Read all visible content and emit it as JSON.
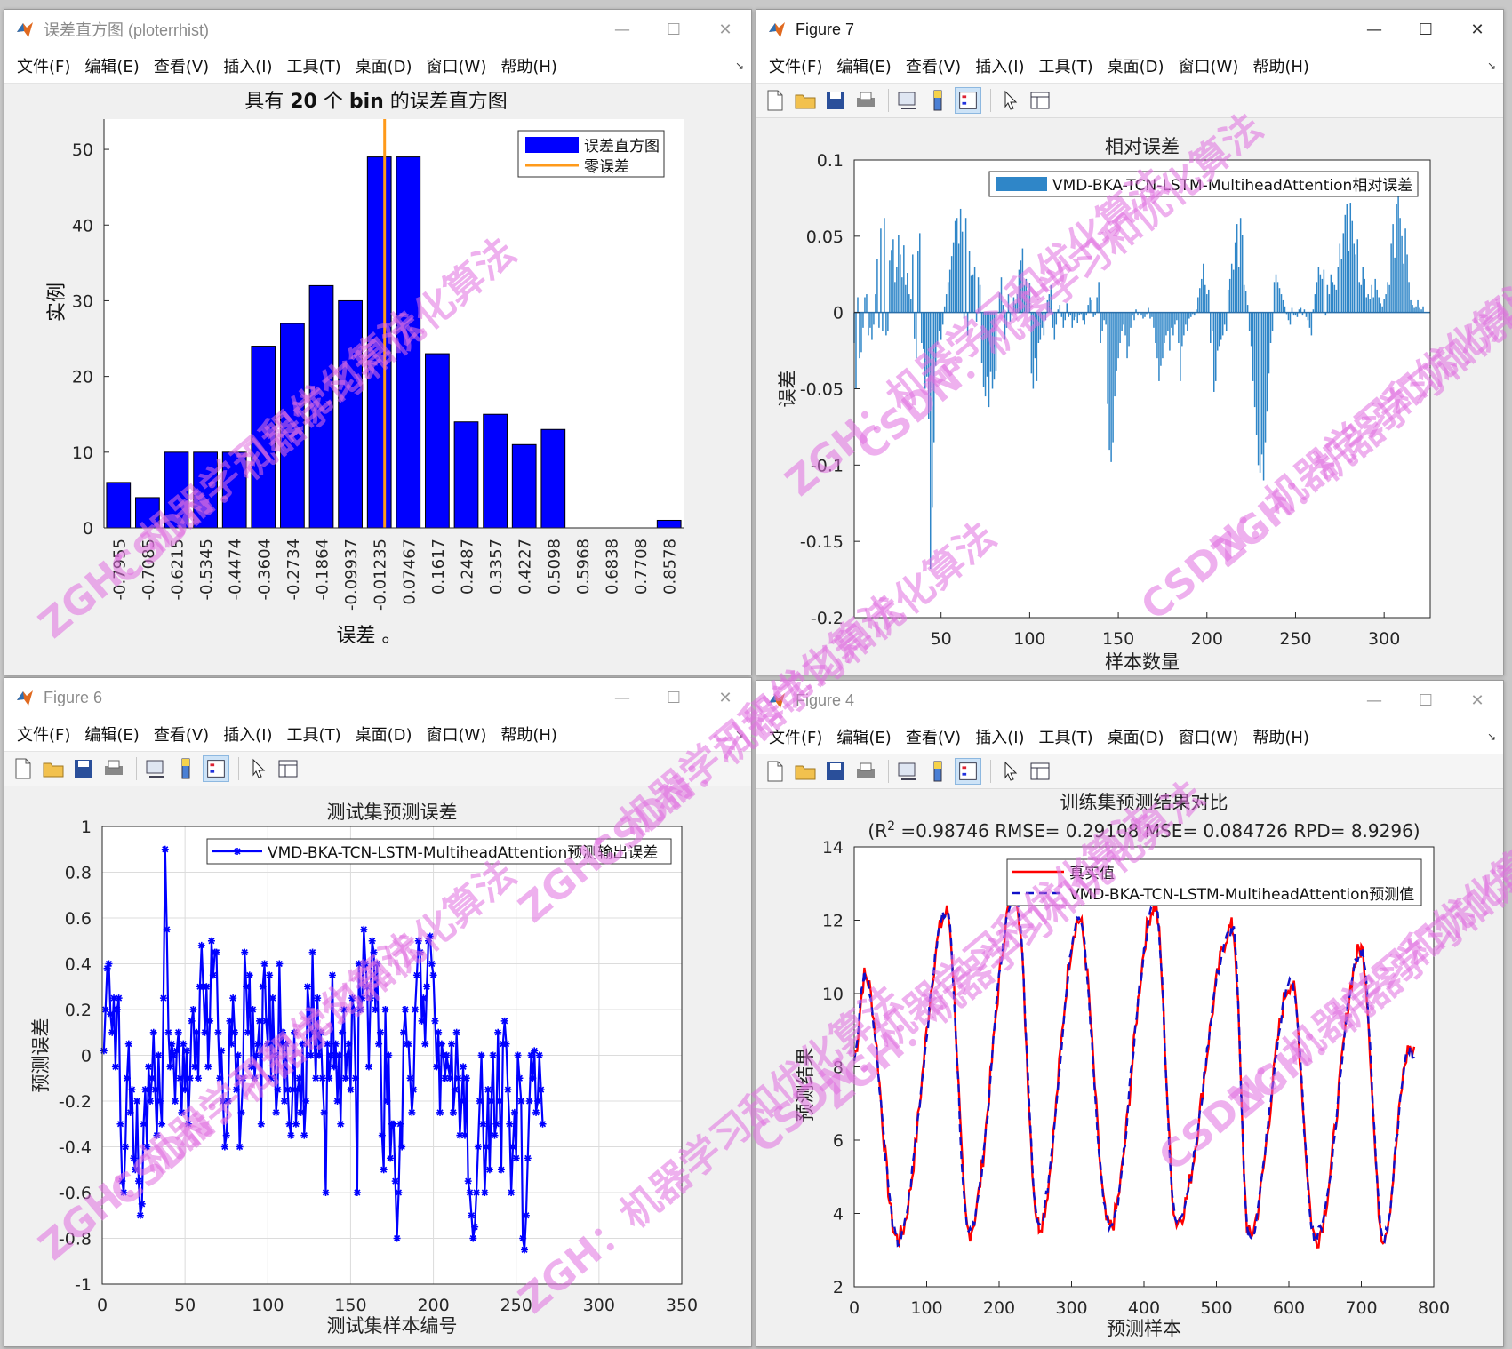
{
  "menu": [
    "文件(F)",
    "编辑(E)",
    "查看(V)",
    "插入(I)",
    "工具(T)",
    "桌面(D)",
    "窗口(W)",
    "帮助(H)"
  ],
  "controls": {
    "minimize": "—",
    "maximize": "☐",
    "close": "✕"
  },
  "toolbar_icons": [
    "new-file-icon",
    "open-folder-icon",
    "save-icon",
    "print-icon",
    "link-plot-icon",
    "colorbar-icon",
    "legend-icon",
    "pointer-icon",
    "property-editor-icon"
  ],
  "windows": {
    "hist": {
      "title": "误差直方图 (ploterrhist)",
      "chart_data": {
        "type": "bar",
        "title_parts": [
          "具有 ",
          "20",
          " 个 ",
          "bin",
          " 的误差直方图"
        ],
        "xlabel": "误差 。",
        "ylabel": "实例",
        "categories": [
          "-0.7955",
          "-0.7085",
          "-0.6215",
          "-0.5345",
          "-0.4474",
          "-0.3604",
          "-0.2734",
          "-0.1864",
          "-0.09937",
          "-0.01235",
          "0.07467",
          "0.1617",
          "0.2487",
          "0.3357",
          "0.4227",
          "0.5098",
          "0.5968",
          "0.6838",
          "0.7708",
          "0.8578"
        ],
        "values": [
          6,
          4,
          10,
          10,
          10,
          24,
          27,
          32,
          30,
          49,
          49,
          23,
          14,
          15,
          11,
          13,
          0,
          0,
          0,
          1
        ],
        "ylim": [
          0,
          54
        ],
        "yticks": [
          0,
          10,
          20,
          30,
          40,
          50
        ],
        "zero_line_at": -0.01235,
        "legend": [
          {
            "name": "误差直方图",
            "color": "#0000ff"
          },
          {
            "name": "零误差",
            "color": "#ff9a1a"
          }
        ],
        "legend_position": "top-right"
      }
    },
    "fig7": {
      "title": "Figure 7",
      "chart_data": {
        "type": "bar",
        "title": "相对误差",
        "xlabel": "样本数量",
        "ylabel": "误差",
        "xlim": [
          1,
          326
        ],
        "ylim": [
          -0.2,
          0.1
        ],
        "xticks": [
          50,
          100,
          150,
          200,
          250,
          300
        ],
        "yticks": [
          0.1,
          0.05,
          0,
          -0.05,
          -0.1,
          -0.15,
          -0.2
        ],
        "ytick_labels": [
          "0.1",
          "0.05",
          "0",
          "-0.05",
          "-0.1",
          "-0.15",
          "-0.2"
        ],
        "legend": [
          {
            "name": "VMD-BKA-TCN-LSTM-MultiheadAttention相对误差",
            "color": "#2f86c8"
          }
        ],
        "legend_position": "top-right",
        "values": [
          -0.02,
          -0.05,
          0.01,
          -0.03,
          -0.026,
          -0.01,
          0.01,
          0.012,
          -0.015,
          -0.01,
          -0.018,
          -0.008,
          0.012,
          0.035,
          -0.01,
          0.055,
          -0.012,
          0.062,
          -0.015,
          -0.012,
          0.034,
          0.041,
          0.048,
          0.02,
          0.03,
          0.051,
          0.038,
          0.023,
          0.044,
          0.018,
          0.026,
          0.012,
          0.009,
          0.038,
          -0.017,
          -0.03,
          0.04,
          0.052,
          -0.02,
          -0.024,
          -0.05,
          -0.042,
          -0.07,
          -0.168,
          -0.128,
          -0.085,
          -0.035,
          -0.021,
          -0.012,
          -0.018,
          -0.008,
          0.004,
          0.012,
          0.02,
          0.028,
          0.037,
          0.046,
          0.06,
          0.062,
          0.045,
          0.068,
          0.053,
          -0.004,
          0.062,
          -0.015,
          0.04,
          0.024,
          0.025,
          0.03,
          -0.006,
          0.023,
          0.018,
          -0.033,
          -0.049,
          -0.055,
          -0.042,
          -0.062,
          -0.039,
          -0.05,
          -0.044,
          -0.038,
          0.0,
          0.013,
          0.023,
          0.005,
          -0.018,
          -0.01,
          0.012,
          -0.006,
          -0.002,
          0.01,
          0.006,
          0.012,
          0.028,
          0.034,
          0.042,
          0.018,
          0.022,
          0.012,
          0.019,
          -0.04,
          -0.05,
          -0.03,
          -0.045,
          -0.02,
          -0.018,
          -0.01,
          -0.015,
          -0.005,
          0.008,
          0.012,
          0.018,
          -0.01,
          -0.018,
          -0.008,
          0.002,
          0.005,
          -0.003,
          -0.01,
          -0.005,
          0.006,
          -0.003,
          -0.002,
          -0.01,
          -0.005,
          -0.003,
          -0.007,
          -0.002,
          -0.001,
          -0.005,
          -0.008,
          -0.002,
          0.005,
          0.01,
          0.008,
          -0.003,
          -0.002,
          0.01,
          0.02,
          -0.02,
          -0.012,
          -0.005,
          -0.008,
          -0.06,
          -0.09,
          -0.098,
          -0.085,
          -0.055,
          -0.038,
          -0.03,
          -0.02,
          -0.012,
          -0.008,
          -0.015,
          -0.03,
          -0.022,
          -0.01,
          -0.002,
          -0.005,
          0.002,
          -0.002,
          0.0,
          -0.002,
          -0.004,
          -0.003,
          -0.001,
          0.003,
          -0.004,
          -0.003,
          -0.01,
          -0.02,
          -0.03,
          -0.045,
          -0.035,
          -0.03,
          -0.02,
          -0.015,
          -0.012,
          -0.025,
          -0.01,
          -0.015,
          -0.008,
          -0.005,
          -0.02,
          -0.045,
          -0.022,
          -0.015,
          -0.008,
          -0.012,
          -0.004,
          -0.003,
          -0.001,
          -0.002,
          0.002,
          0.01,
          0.016,
          0.022,
          0.032,
          0.018,
          0.012,
          0.015,
          -0.02,
          -0.012,
          -0.052,
          -0.045,
          -0.025,
          -0.022,
          -0.018,
          -0.015,
          -0.008,
          -0.012,
          0.015,
          0.022,
          0.032,
          0.028,
          0.046,
          0.058,
          0.03,
          0.062,
          0.051,
          0.018,
          0.014,
          0.005,
          -0.012,
          -0.022,
          -0.045,
          -0.062,
          -0.08,
          -0.1,
          -0.105,
          -0.093,
          -0.11,
          -0.085,
          -0.065,
          -0.04,
          -0.02,
          -0.012,
          0.02,
          0.025,
          0.02,
          0.016,
          0.012,
          0.008,
          0.004,
          -0.001,
          -0.005,
          -0.008,
          0.003,
          -0.002,
          -0.002,
          -0.003,
          0.002,
          0.003,
          -0.002,
          0.002,
          -0.003,
          -0.005,
          -0.01,
          -0.015,
          0.002,
          0.012,
          0.02,
          0.03,
          0.025,
          0.022,
          0.028,
          -0.002,
          0.018,
          0.012,
          0.025,
          0.02,
          0.018,
          0.015,
          0.03,
          0.045,
          0.035,
          0.052,
          0.064,
          0.071,
          0.04,
          0.072,
          0.06,
          0.045,
          0.038,
          0.048,
          0.02,
          0.018,
          0.03,
          0.022,
          0.01,
          0.012,
          0.009,
          0.018,
          0.01,
          0.022,
          0.015,
          0.01,
          0.006,
          0.004,
          0.009,
          0.012,
          0.02,
          0.018,
          0.045,
          0.058,
          0.036,
          0.071,
          0.084,
          0.062,
          0.05,
          0.032,
          0.055,
          0.038,
          0.02,
          0.008,
          0.005,
          0.003,
          0.004,
          0.008,
          0.003,
          0.002,
          0.004
        ]
      }
    },
    "fig6": {
      "title": "Figure 6",
      "chart_data": {
        "type": "line",
        "title": "测试集预测误差",
        "xlabel": "测试集样本编号",
        "ylabel": "预测误差",
        "xlim": [
          0,
          350
        ],
        "ylim": [
          -1,
          1
        ],
        "xticks": [
          0,
          50,
          100,
          150,
          200,
          250,
          300,
          350
        ],
        "yticks": [
          1,
          0.8,
          0.6,
          0.4,
          0.2,
          0,
          -0.2,
          -0.4,
          -0.6,
          -0.8,
          -1
        ],
        "ytick_labels": [
          "1",
          "0.8",
          "0.6",
          "0.4",
          "0.2",
          "0",
          "-0.2",
          "-0.4",
          "-0.6",
          "-0.8",
          "-1"
        ],
        "legend": [
          {
            "name": "VMD-BKA-TCN-LSTM-MultiheadAttention预测输出误差",
            "color": "#0000ff"
          }
        ],
        "legend_position": "top-right",
        "values": [
          0.02,
          0.2,
          0.38,
          0.4,
          0.18,
          0.1,
          0.25,
          -0.05,
          0.2,
          0.25,
          -0.3,
          -0.55,
          -0.6,
          -0.4,
          -0.1,
          0.05,
          -0.25,
          -0.15,
          -0.45,
          -0.5,
          -0.2,
          -0.55,
          -0.7,
          -0.65,
          -0.3,
          -0.15,
          -0.4,
          -0.05,
          -0.2,
          -0.1,
          0.1,
          -0.15,
          -0.35,
          0.0,
          -0.2,
          -0.3,
          0.25,
          0.9,
          0.55,
          0.1,
          -0.05,
          0.05,
          0.0,
          -0.2,
          0.02,
          0.1,
          -0.1,
          -0.25,
          0.05,
          -0.15,
          0.02,
          -0.3,
          -0.1,
          0.15,
          0.2,
          -0.05,
          0.1,
          -0.1,
          0.3,
          0.48,
          0.3,
          0.1,
          0.3,
          -0.05,
          0.15,
          0.5,
          0.35,
          0.45,
          0.45,
          0.1,
          -0.1,
          0.02,
          -0.2,
          -0.4,
          -0.35,
          -0.2,
          0.15,
          0.05,
          0.25,
          0.1,
          -0.15,
          0.0,
          -0.4,
          -0.25,
          -0.1,
          0.45,
          0.3,
          0.1,
          0.35,
          -0.05,
          0.2,
          -0.1,
          0.0,
          0.05,
          0.15,
          -0.3,
          0.3,
          0.4,
          0.15,
          0.05,
          0.35,
          -0.1,
          0.25,
          0.0,
          -0.25,
          -0.15,
          0.4,
          0.05,
          0.1,
          -0.2,
          0.05,
          -0.15,
          -0.3,
          -0.35,
          -0.15,
          0.1,
          -0.3,
          -0.15,
          -0.1,
          -0.25,
          0.05,
          -0.35,
          -0.2,
          0.3,
          0.2,
          0.0,
          0.45,
          0.1,
          -0.1,
          0.25,
          0.0,
          0.1,
          -0.1,
          -0.25,
          -0.6,
          0.05,
          -0.1,
          0.0,
          0.35,
          -0.05,
          0.05,
          -0.2,
          0.0,
          -0.3,
          0.1,
          0.2,
          -0.1,
          0.0,
          0.05,
          -0.15,
          0.25,
          0.2,
          -0.1,
          -0.6,
          0.4,
          0.2,
          0.25,
          0.55,
          0.4,
          0.3,
          -0.05,
          0.25,
          0.5,
          0.45,
          0.2,
          0.4,
          0.05,
          0.1,
          -0.35,
          -0.5,
          0.2,
          -0.2,
          0.0,
          -0.45,
          -0.3,
          -0.3,
          -0.55,
          -0.8,
          -0.6,
          -0.3,
          -0.4,
          0.1,
          0.2,
          0.05,
          0.05,
          -0.1,
          -0.25,
          -0.15,
          0.2,
          0.35,
          0.5,
          0.45,
          0.15,
          0.25,
          0.05,
          0.3,
          0.5,
          0.52,
          0.4,
          0.35,
          0.15,
          -0.05,
          0.1,
          -0.25,
          0.05,
          0.0,
          -0.1,
          0.0,
          -0.05,
          -0.1,
          0.05,
          -0.25,
          -0.15,
          0.1,
          -0.1,
          -0.35,
          -0.2,
          -0.05,
          -0.35,
          -0.1,
          -0.55,
          -0.6,
          -0.7,
          -0.8,
          -0.75,
          -0.6,
          -0.4,
          -0.2,
          0.0,
          -0.3,
          -0.6,
          -0.4,
          -0.15,
          -0.5,
          -0.2,
          0.0,
          -0.35,
          -0.3,
          0.1,
          -0.2,
          -0.5,
          0.05,
          0.15,
          0.05,
          -0.15,
          -0.3,
          -0.6,
          -0.4,
          -0.25,
          -0.45,
          0.0,
          -0.1,
          -0.2,
          -0.8,
          -0.85,
          -0.7,
          -0.45,
          -0.2,
          0.0,
          -0.1,
          0.02,
          -0.25,
          -0.2,
          0.0,
          -0.15,
          -0.3
        ]
      }
    },
    "fig4": {
      "title": "Figure 4",
      "chart_data": {
        "type": "line",
        "title_line1": "训练集预测结果对比",
        "title_line2_pre": "(R",
        "title_line2_sup": "2",
        "title_line2_post": " =0.98746 RMSE= 0.29108 MSE= 0.084726 RPD= 8.9296)",
        "xlabel": "预测样本",
        "ylabel": "预测结果",
        "xlim": [
          0,
          800
        ],
        "ylim": [
          2,
          14
        ],
        "xticks": [
          0,
          100,
          200,
          300,
          400,
          500,
          600,
          700,
          800
        ],
        "yticks": [
          2,
          4,
          6,
          8,
          10,
          12,
          14
        ],
        "series": [
          {
            "name": "真实值",
            "color": "#ff0000",
            "style": "solid"
          },
          {
            "name": "VMD-BKA-TCN-LSTM-MultiheadAttention预测值",
            "color": "#1010c8",
            "style": "dashed"
          }
        ],
        "legend_position": "top-right",
        "cycles": [
          {
            "start": 0,
            "peak_x": 15,
            "peak": 10.5,
            "trough_x": 60,
            "trough": 3.3,
            "next_peak_x": 128,
            "next_peak": 12.2
          },
          {
            "start": 128,
            "trough_x": 158,
            "trough": 3.5,
            "peak_x": 222,
            "peak": 12.8
          },
          {
            "start": 222,
            "trough_x": 255,
            "trough": 3.7,
            "peak_x": 310,
            "peak": 12.0
          },
          {
            "start": 310,
            "trough_x": 352,
            "trough": 3.6,
            "peak_x": 415,
            "peak": 12.4
          },
          {
            "start": 415,
            "trough_x": 445,
            "trough": 3.8,
            "peak_x": 522,
            "peak": 11.8
          },
          {
            "start": 522,
            "trough_x": 545,
            "trough": 3.4,
            "peak_x": 603,
            "peak": 10.3
          },
          {
            "start": 603,
            "trough_x": 637,
            "trough": 3.3,
            "peak_x": 700,
            "peak": 11.2
          },
          {
            "start": 700,
            "trough_x": 730,
            "trough": 3.4,
            "peak_x": 767,
            "peak": 8.5
          }
        ]
      }
    }
  }
}
